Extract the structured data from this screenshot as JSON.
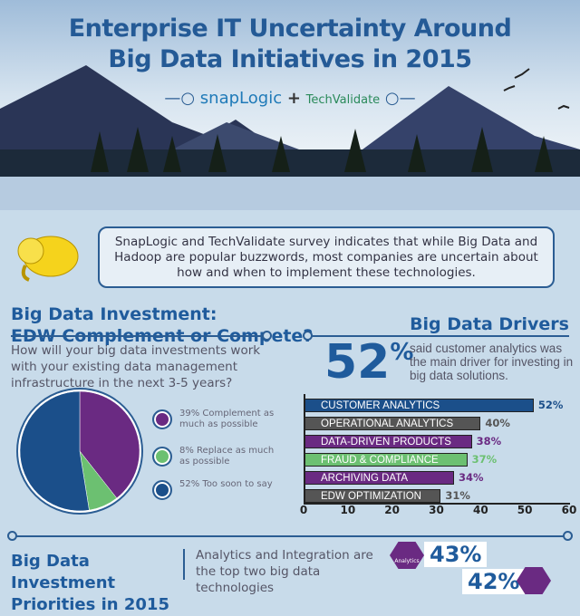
{
  "header": {
    "title_line1": "Enterprise IT Uncertainty Around",
    "title_line2": "Big Data Initiatives in 2015",
    "logo_snaplogic": "snapLogic",
    "plus": "+",
    "logo_techvalidate": "TechValidate"
  },
  "intro": {
    "text": "SnapLogic and TechValidate survey indicates that while Big Data and Hadoop are popular buzzwords, most companies are uncertain about how and when to implement these technologies."
  },
  "investment": {
    "title_line1": "Big Data Investment:",
    "title_line2": "EDW Complement or Compete?",
    "question": "How will your big data investments work with your existing data management infrastructure in the next 3-5 years?",
    "legend": [
      {
        "label": "39% Complement as much as possible",
        "value": 39,
        "color": "#6a2a82"
      },
      {
        "label": "8% Replace as much as possible",
        "value": 8,
        "color": "#6cc071"
      },
      {
        "label": "52% Too soon to say",
        "value": 52,
        "color": "#1b4f8a"
      }
    ]
  },
  "drivers": {
    "title": "Big Data Drivers",
    "big_stat": "52",
    "big_stat_unit": "%",
    "stat_text": "said customer analytics was the main driver for investing in big data solutions."
  },
  "chart_data": {
    "type": "bar",
    "orientation": "horizontal",
    "categories": [
      "CUSTOMER ANALYTICS",
      "OPERATIONAL ANALYTICS",
      "DATA-DRIVEN PRODUCTS",
      "FRAUD & COMPLIANCE",
      "ARCHIVING DATA",
      "EDW OPTIMIZATION"
    ],
    "values": [
      52,
      40,
      38,
      37,
      34,
      31
    ],
    "value_labels": [
      "52%",
      "40%",
      "38%",
      "37%",
      "34%",
      "31%"
    ],
    "colors": [
      "#1b4f8a",
      "#555555",
      "#6a2a82",
      "#6cc071",
      "#6a2a82",
      "#555555"
    ],
    "xlim": [
      0,
      60
    ],
    "xticks": [
      "0",
      "10",
      "20",
      "30",
      "40",
      "50",
      "60"
    ]
  },
  "priorities": {
    "title": "Big Data Investment Priorities in 2015",
    "text": "Analytics and Integration are the top two big data technologies",
    "analytics_badge": "Analytics",
    "analytics_pct": "43%",
    "second_pct": "42%"
  }
}
